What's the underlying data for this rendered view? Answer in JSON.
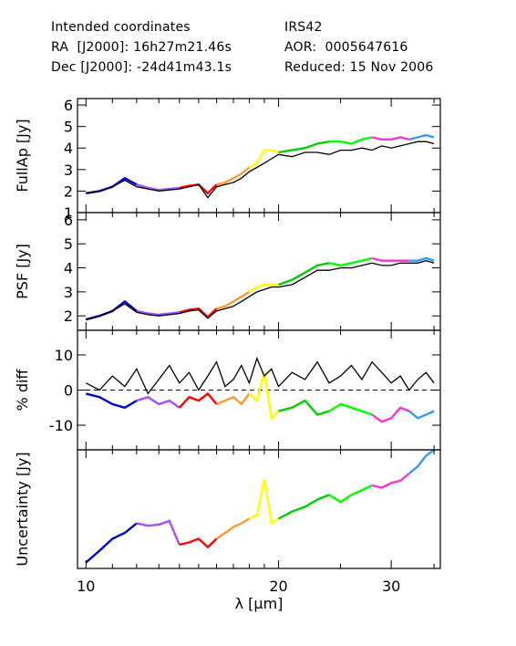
{
  "header": {
    "left": {
      "line1": "Intended coordinates",
      "line2": "RA  [J2000]: 16h27m21.46s",
      "line3": "Dec [J2000]: -24d41m43.1s"
    },
    "right": {
      "line1": "IRS42",
      "line2": "AOR:  0005647616",
      "line3": "Reduced: 15 Nov 2006"
    }
  },
  "colors": {
    "reference": "#000000",
    "segments": [
      "#0000cc",
      "#a64dff",
      "#ff0000",
      "#ff9933",
      "#ffff00",
      "#00cc00",
      "#00ff00",
      "#ff33cc",
      "#3399ff",
      "#33cc33"
    ]
  },
  "chart_data": [
    {
      "type": "line",
      "panel": "fullap",
      "ylabel": "FullAp [Jy]",
      "xlabel": "",
      "xscale": "log",
      "xlim": [
        9.7,
        35.8
      ],
      "ylim": [
        1,
        6.3
      ],
      "yticks": [
        1,
        2,
        3,
        4,
        5,
        6
      ],
      "reference_series": {
        "x": [
          10,
          10.5,
          11,
          11.5,
          12,
          12.5,
          13,
          13.5,
          14,
          14.5,
          15,
          15.5,
          16,
          16.5,
          17,
          17.5,
          18,
          18.5,
          19,
          19.5,
          20,
          21,
          22,
          23,
          24,
          25,
          26,
          27,
          28,
          29,
          30,
          31,
          32,
          33,
          34,
          35
        ],
        "y": [
          1.9,
          2.0,
          2.2,
          2.5,
          2.2,
          2.1,
          2.0,
          2.05,
          2.1,
          2.2,
          2.3,
          1.7,
          2.2,
          2.3,
          2.4,
          2.6,
          2.9,
          3.1,
          3.3,
          3.5,
          3.7,
          3.6,
          3.8,
          3.8,
          3.7,
          3.9,
          3.9,
          4.0,
          3.9,
          4.1,
          4.0,
          4.1,
          4.2,
          4.3,
          4.3,
          4.2
        ]
      },
      "segment_series": {
        "x": [
          10,
          10.5,
          11,
          11.5,
          12,
          12.5,
          13,
          13.5,
          14,
          14.5,
          15,
          15.5,
          16,
          16.5,
          17,
          17.5,
          18,
          18.5,
          19,
          19.5,
          20,
          21,
          22,
          23,
          24,
          25,
          26,
          27,
          28,
          29,
          30,
          31,
          32,
          33,
          34,
          35
        ],
        "y": [
          1.9,
          2.0,
          2.2,
          2.6,
          2.3,
          2.15,
          2.05,
          2.1,
          2.15,
          2.25,
          2.3,
          1.9,
          2.3,
          2.4,
          2.6,
          2.8,
          3.1,
          3.3,
          3.9,
          3.9,
          3.8,
          3.9,
          4.0,
          4.2,
          4.3,
          4.3,
          4.2,
          4.4,
          4.5,
          4.4,
          4.4,
          4.5,
          4.4,
          4.5,
          4.6,
          4.5
        ]
      }
    },
    {
      "type": "line",
      "panel": "psf",
      "ylabel": "PSF [Jy]",
      "xlabel": "",
      "xscale": "log",
      "xlim": [
        9.7,
        35.8
      ],
      "ylim": [
        1.4,
        6.3
      ],
      "yticks": [
        2,
        3,
        4,
        5,
        6
      ],
      "reference_series": {
        "x": [
          10,
          10.5,
          11,
          11.5,
          12,
          12.5,
          13,
          13.5,
          14,
          14.5,
          15,
          15.5,
          16,
          16.5,
          17,
          17.5,
          18,
          18.5,
          19,
          19.5,
          20,
          21,
          22,
          23,
          24,
          25,
          26,
          27,
          28,
          29,
          30,
          31,
          32,
          33,
          34,
          35
        ],
        "y": [
          1.85,
          2.0,
          2.2,
          2.5,
          2.15,
          2.05,
          2.0,
          2.05,
          2.1,
          2.2,
          2.25,
          1.9,
          2.2,
          2.3,
          2.4,
          2.6,
          2.8,
          3.0,
          3.1,
          3.2,
          3.2,
          3.3,
          3.6,
          3.9,
          3.9,
          4.0,
          4.0,
          4.1,
          4.2,
          4.1,
          4.1,
          4.2,
          4.2,
          4.2,
          4.3,
          4.2
        ]
      },
      "segment_series": {
        "x": [
          10,
          10.5,
          11,
          11.5,
          12,
          12.5,
          13,
          13.5,
          14,
          14.5,
          15,
          15.5,
          16,
          16.5,
          17,
          17.5,
          18,
          18.5,
          19,
          19.5,
          20,
          21,
          22,
          23,
          24,
          25,
          26,
          27,
          28,
          29,
          30,
          31,
          32,
          33,
          34,
          35
        ],
        "y": [
          1.85,
          2.0,
          2.2,
          2.6,
          2.2,
          2.1,
          2.05,
          2.1,
          2.15,
          2.25,
          2.3,
          1.95,
          2.3,
          2.4,
          2.6,
          2.8,
          3.0,
          3.2,
          3.3,
          3.3,
          3.3,
          3.5,
          3.8,
          4.1,
          4.2,
          4.1,
          4.2,
          4.3,
          4.4,
          4.3,
          4.3,
          4.3,
          4.3,
          4.3,
          4.4,
          4.3
        ]
      }
    },
    {
      "type": "line",
      "panel": "pctdiff",
      "ylabel": "% diff",
      "xlabel": "",
      "xscale": "log",
      "xlim": [
        9.7,
        35.8
      ],
      "ylim": [
        -17,
        17
      ],
      "yticks": [
        -10,
        0,
        10
      ],
      "reference_line": 0,
      "reference_series": {
        "x": [
          10,
          10.5,
          11,
          11.5,
          12,
          12.5,
          13,
          13.5,
          14,
          14.5,
          15,
          15.5,
          16,
          16.5,
          17,
          17.5,
          18,
          18.5,
          19,
          19.5,
          20,
          21,
          22,
          23,
          24,
          25,
          26,
          27,
          28,
          29,
          30,
          31,
          32,
          33,
          34,
          35
        ],
        "y": [
          2,
          0,
          4,
          1,
          6,
          -1,
          3,
          7,
          2,
          5,
          0,
          4,
          8,
          1,
          3,
          7,
          2,
          9,
          4,
          6,
          1,
          5,
          3,
          8,
          2,
          4,
          7,
          3,
          8,
          5,
          2,
          4,
          0,
          3,
          5,
          2
        ]
      },
      "segment_series": {
        "x": [
          10,
          10.5,
          11,
          11.5,
          12,
          12.5,
          13,
          13.5,
          14,
          14.5,
          15,
          15.5,
          16,
          16.5,
          17,
          17.5,
          18,
          18.5,
          19,
          19.5,
          20,
          21,
          22,
          23,
          24,
          25,
          26,
          27,
          28,
          29,
          30,
          31,
          32,
          33,
          34,
          35
        ],
        "y": [
          -1,
          -2,
          -4,
          -5,
          -3,
          -2,
          -4,
          -3,
          -5,
          -2,
          -3,
          -1,
          -4,
          -3,
          -2,
          -4,
          -1,
          -3,
          5,
          -8,
          -6,
          -5,
          -3,
          -7,
          -6,
          -4,
          -5,
          -6,
          -7,
          -9,
          -8,
          -5,
          -6,
          -8,
          -7,
          -6
        ]
      }
    },
    {
      "type": "line",
      "panel": "uncertainty",
      "ylabel": "Uncertainty [Jy]",
      "xlabel": "λ [μm]",
      "xscale": "log",
      "xlim": [
        9.7,
        35.8
      ],
      "ylim": [
        0,
        1
      ],
      "xticks": [
        10,
        20,
        30
      ],
      "segment_series": {
        "x": [
          10,
          10.5,
          11,
          11.5,
          12,
          12.5,
          13,
          13.5,
          14,
          14.5,
          15,
          15.5,
          16,
          16.5,
          17,
          17.5,
          18,
          18.5,
          19,
          19.5,
          20,
          21,
          22,
          23,
          24,
          25,
          26,
          27,
          28,
          29,
          30,
          31,
          32,
          33,
          34,
          35
        ],
        "y": [
          0.05,
          0.15,
          0.25,
          0.3,
          0.38,
          0.36,
          0.37,
          0.4,
          0.2,
          0.22,
          0.25,
          0.18,
          0.25,
          0.3,
          0.35,
          0.38,
          0.42,
          0.45,
          0.75,
          0.38,
          0.42,
          0.48,
          0.52,
          0.58,
          0.62,
          0.56,
          0.62,
          0.66,
          0.7,
          0.68,
          0.72,
          0.74,
          0.8,
          0.86,
          0.95,
          1.0
        ]
      }
    }
  ]
}
